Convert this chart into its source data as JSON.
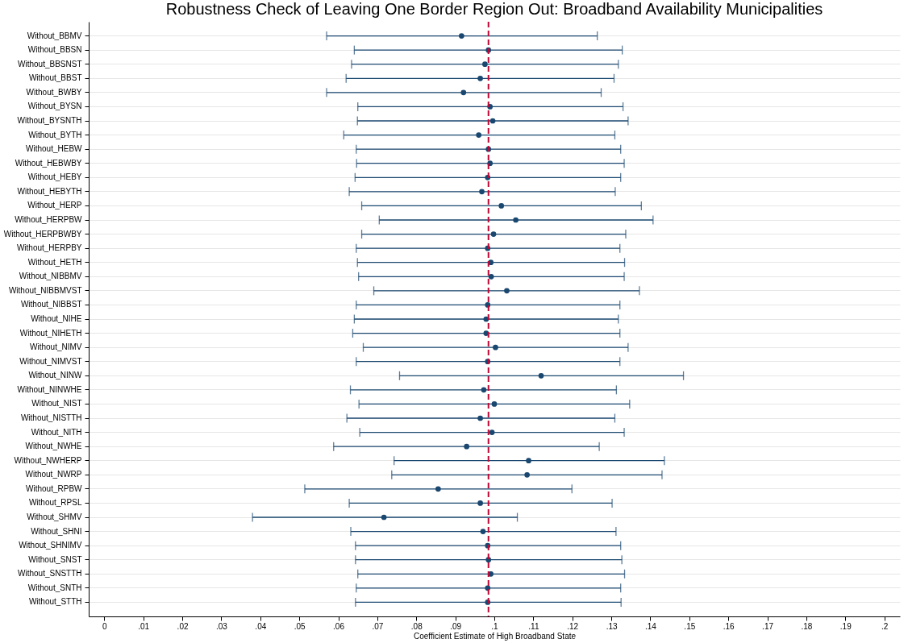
{
  "chart_data": {
    "type": "scatter",
    "orientation": "horizontal",
    "title": "Robustness Check of Leaving One Border Region Out: Broadband Availability Municipalities",
    "xlabel": "Coefficient Estimate of High Broadband State",
    "categories": [
      "Without_BBMV",
      "Without_BBSN",
      "Without_BBSNST",
      "Without_BBST",
      "Without_BWBY",
      "Without_BYSN",
      "Without_BYSNTH",
      "Without_BYTH",
      "Without_HEBW",
      "Without_HEBWBY",
      "Without_HEBY",
      "Without_HEBYTH",
      "Without_HERP",
      "Without_HERPBW",
      "Without_HERPBWBY",
      "Without_HERPBY",
      "Without_HETH",
      "Without_NIBBMV",
      "Without_NIBBMVST",
      "Without_NIBBST",
      "Without_NIHE",
      "Without_NIHETH",
      "Without_NIMV",
      "Without_NIMVST",
      "Without_NINW",
      "Without_NINWHE",
      "Without_NIST",
      "Without_NISTTH",
      "Without_NITH",
      "Without_NWHE",
      "Without_NWHERP",
      "Without_NWRP",
      "Without_RPBW",
      "Without_RPSL",
      "Without_SHMV",
      "Without_SHNI",
      "Without_SHNIMV",
      "Without_SNST",
      "Without_SNSTTH",
      "Without_SNTH",
      "Without_STTH"
    ],
    "series": [
      {
        "color": "#1a476f",
        "values": [
          0.0916,
          0.0985,
          0.0976,
          0.0964,
          0.0921,
          0.0989,
          0.0996,
          0.096,
          0.0985,
          0.0989,
          0.0983,
          0.0968,
          0.1018,
          0.1055,
          0.0998,
          0.0983,
          0.0991,
          0.0992,
          0.1032,
          0.0983,
          0.0979,
          0.0979,
          0.1003,
          0.0983,
          0.112,
          0.0973,
          0.1,
          0.0964,
          0.0994,
          0.0929,
          0.1088,
          0.1084,
          0.0856,
          0.0964,
          0.0717,
          0.0971,
          0.0983,
          0.0985,
          0.0991,
          0.0983,
          0.0983
        ],
        "errors": [
          [
            0.057,
            0.1264
          ],
          [
            0.0641,
            0.1328
          ],
          [
            0.0634,
            0.1318
          ],
          [
            0.062,
            0.1307
          ],
          [
            0.057,
            0.1274
          ],
          [
            0.065,
            0.133
          ],
          [
            0.0649,
            0.1343
          ],
          [
            0.0614,
            0.1309
          ],
          [
            0.0646,
            0.1324
          ],
          [
            0.0647,
            0.1333
          ],
          [
            0.0643,
            0.1324
          ],
          [
            0.0628,
            0.131
          ],
          [
            0.066,
            0.1377
          ],
          [
            0.0705,
            0.1407
          ],
          [
            0.066,
            0.1337
          ],
          [
            0.0646,
            0.1322
          ],
          [
            0.0649,
            0.1334
          ],
          [
            0.0652,
            0.1333
          ],
          [
            0.0691,
            0.1372
          ],
          [
            0.0646,
            0.1322
          ],
          [
            0.0641,
            0.1318
          ],
          [
            0.0637,
            0.1322
          ],
          [
            0.0664,
            0.1343
          ],
          [
            0.0646,
            0.1322
          ],
          [
            0.0757,
            0.1485
          ],
          [
            0.0631,
            0.1313
          ],
          [
            0.0653,
            0.1347
          ],
          [
            0.0622,
            0.1309
          ],
          [
            0.0655,
            0.1333
          ],
          [
            0.0588,
            0.1269
          ],
          [
            0.0743,
            0.1436
          ],
          [
            0.0737,
            0.143
          ],
          [
            0.0514,
            0.1199
          ],
          [
            0.0628,
            0.1302
          ],
          [
            0.038,
            0.1059
          ],
          [
            0.0632,
            0.1312
          ],
          [
            0.0644,
            0.1324
          ],
          [
            0.0644,
            0.1327
          ],
          [
            0.065,
            0.1334
          ],
          [
            0.0646,
            0.1324
          ],
          [
            0.0644,
            0.1325
          ]
        ]
      }
    ],
    "marker": "circle",
    "xlim": [
      -0.004,
      0.204
    ],
    "xticks": [
      0,
      {
        "value": 0.01,
        "label": ".01"
      },
      {
        "value": 0.02,
        "label": ".02"
      },
      {
        "value": 0.03,
        "label": ".03"
      },
      {
        "value": 0.04,
        "label": ".04"
      },
      {
        "value": 0.05,
        "label": ".05"
      },
      {
        "value": 0.06,
        "label": ".06"
      },
      {
        "value": 0.07,
        "label": ".07"
      },
      {
        "value": 0.08,
        "label": ".08"
      },
      {
        "value": 0.09,
        "label": ".09"
      },
      {
        "value": 0.1,
        "label": ".1"
      },
      {
        "value": 0.11,
        "label": ".11"
      },
      {
        "value": 0.12,
        "label": ".12"
      },
      {
        "value": 0.13,
        "label": ".13"
      },
      {
        "value": 0.14,
        "label": ".14"
      },
      {
        "value": 0.15,
        "label": ".15"
      },
      {
        "value": 0.16,
        "label": ".16"
      },
      {
        "value": 0.17,
        "label": ".17"
      },
      {
        "value": 0.18,
        "label": ".18"
      },
      {
        "value": 0.19,
        "label": ".19"
      },
      {
        "value": 0.2,
        "label": ".2"
      }
    ],
    "ref_lines": [
      {
        "axis": "x",
        "value": 0.0985,
        "color": "#c10534",
        "line_style": "dashed"
      }
    ],
    "grid": "y"
  }
}
